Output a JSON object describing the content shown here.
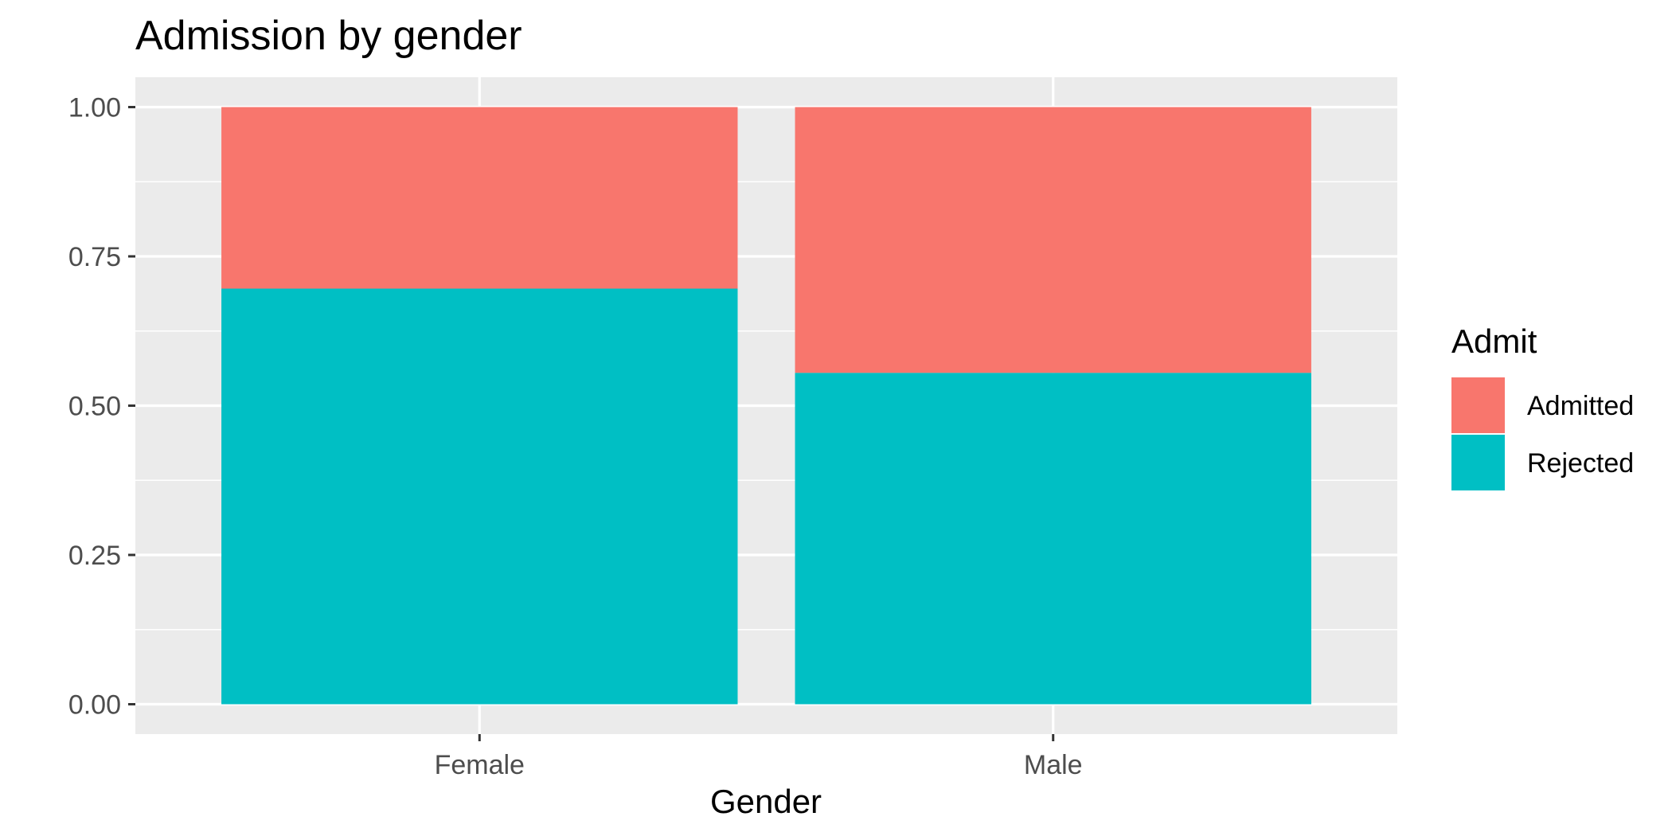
{
  "chart_data": {
    "type": "bar",
    "stacked": true,
    "title": "Admission by gender",
    "xlabel": "Gender",
    "ylabel": "",
    "categories": [
      "Female",
      "Male"
    ],
    "series": [
      {
        "name": "Rejected",
        "values": [
          0.696,
          0.555
        ],
        "color": "#00BFC4"
      },
      {
        "name": "Admitted",
        "values": [
          0.304,
          0.445
        ],
        "color": "#F8766D"
      }
    ],
    "ylim": [
      -0.05,
      1.05
    ],
    "yticks": [
      0,
      0.25,
      0.5,
      0.75,
      1.0
    ],
    "ytick_labels": [
      "0.00",
      "0.25",
      "0.50",
      "0.75",
      "1.00"
    ],
    "grid": true,
    "panel_background": "#EBEBEB",
    "grid_color": "#FFFFFF",
    "legend": {
      "title": "Admit",
      "placement": "right",
      "entries": [
        {
          "label": "Admitted",
          "color": "#F8766D"
        },
        {
          "label": "Rejected",
          "color": "#00BFC4"
        }
      ]
    }
  }
}
